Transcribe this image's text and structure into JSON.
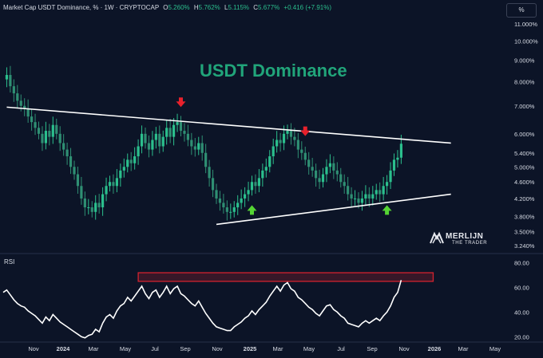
{
  "header": {
    "symbol": "Market Cap USDT Dominance, % · 1W · CRYPTOCAP",
    "o_label": "O",
    "o_value": "5.260%",
    "h_label": "H",
    "h_value": "5.762%",
    "l_label": "L",
    "l_value": "5.115%",
    "c_label": "C",
    "c_value": "5.677%",
    "change": "+0.416 (+7.91%)"
  },
  "scale_button": "%",
  "title": "USDT Dominance",
  "rsi_label": "RSI",
  "watermark": {
    "line1": "MERLIJN",
    "line2": "THE TRADER"
  },
  "colors": {
    "bg": "#0c1427",
    "up": "#2bbf8d",
    "down": "#2f8f73",
    "title": "#21a57a",
    "arrow_down": "#e8212c",
    "arrow_up": "#55d434",
    "box": "#d3232f"
  },
  "chart_data": {
    "type": "candlestick",
    "price_ticks": [
      "11.000%",
      "10.000%",
      "9.000%",
      "8.000%",
      "7.000%",
      "6.000%",
      "5.400%",
      "5.000%",
      "4.600%",
      "4.200%",
      "3.800%",
      "3.500%",
      "3.240%"
    ],
    "price_tick_values": [
      11,
      10,
      9,
      8,
      7,
      6,
      5.4,
      5,
      4.6,
      4.2,
      3.8,
      3.5,
      3.24
    ],
    "rsi_ticks": [
      "80.00",
      "60.00",
      "40.00",
      "20.00"
    ],
    "rsi_tick_values": [
      80,
      60,
      40,
      20
    ],
    "time_ticks": [
      "Nov",
      "2024",
      "Mar",
      "May",
      "Jul",
      "Sep",
      "Nov",
      "2025",
      "Mar",
      "May",
      "Jul",
      "Sep",
      "Nov",
      "2026",
      "Mar",
      "May"
    ],
    "time_ticks_bold": [
      false,
      true,
      false,
      false,
      false,
      false,
      false,
      true,
      false,
      false,
      false,
      false,
      false,
      true,
      false,
      false
    ],
    "scale": "log",
    "closes": [
      8.1,
      8.3,
      7.8,
      7.5,
      7.2,
      7.0,
      6.9,
      6.6,
      6.4,
      6.2,
      6.0,
      5.7,
      6.1,
      5.9,
      6.3,
      6.0,
      5.7,
      5.5,
      5.3,
      5.0,
      4.8,
      4.5,
      4.2,
      4.0,
      4.0,
      3.9,
      4.1,
      4.0,
      4.3,
      4.5,
      4.6,
      4.5,
      4.7,
      4.9,
      5.0,
      5.2,
      5.1,
      5.3,
      5.6,
      6.0,
      5.7,
      5.5,
      5.8,
      6.0,
      5.6,
      5.9,
      6.2,
      5.9,
      6.3,
      6.4,
      6.1,
      6.0,
      5.8,
      5.6,
      5.5,
      5.7,
      5.4,
      5.0,
      4.7,
      4.4,
      4.2,
      4.1,
      4.0,
      3.9,
      3.9,
      4.0,
      4.1,
      4.2,
      4.3,
      4.4,
      4.6,
      4.5,
      4.7,
      4.9,
      5.0,
      5.3,
      5.6,
      5.8,
      5.7,
      6.0,
      6.1,
      5.9,
      5.8,
      5.5,
      5.4,
      5.2,
      5.0,
      4.9,
      4.7,
      4.6,
      4.8,
      5.0,
      5.1,
      4.9,
      4.8,
      4.6,
      4.5,
      4.3,
      4.2,
      4.2,
      4.1,
      4.2,
      4.3,
      4.2,
      4.3,
      4.4,
      4.3,
      4.5,
      4.6,
      4.9,
      5.2,
      5.26,
      5.68
    ],
    "rsi": [
      56,
      58,
      54,
      50,
      47,
      45,
      44,
      41,
      39,
      37,
      34,
      31,
      36,
      33,
      38,
      35,
      32,
      30,
      28,
      26,
      24,
      22,
      20,
      19,
      21,
      22,
      26,
      24,
      31,
      36,
      38,
      35,
      41,
      45,
      47,
      52,
      49,
      53,
      57,
      61,
      55,
      51,
      56,
      58,
      52,
      56,
      61,
      55,
      59,
      61,
      55,
      53,
      50,
      47,
      45,
      49,
      44,
      39,
      35,
      31,
      28,
      27,
      26,
      25,
      25,
      28,
      30,
      32,
      35,
      37,
      41,
      38,
      42,
      45,
      48,
      53,
      57,
      61,
      57,
      62,
      64,
      59,
      57,
      52,
      50,
      47,
      44,
      42,
      39,
      37,
      41,
      45,
      46,
      42,
      40,
      37,
      35,
      31,
      30,
      29,
      28,
      31,
      33,
      31,
      33,
      35,
      33,
      37,
      40,
      45,
      52,
      56,
      66
    ],
    "trendlines": [
      {
        "name": "upper",
        "from": [
          1,
          6.95
        ],
        "to": [
          126,
          5.7
        ]
      },
      {
        "name": "lower",
        "from": [
          60,
          3.64
        ],
        "to": [
          126,
          4.3
        ]
      }
    ],
    "markers": [
      {
        "type": "down",
        "index": 50
      },
      {
        "type": "down",
        "index": 85
      },
      {
        "type": "down",
        "index": 119
      },
      {
        "type": "up",
        "index": 70
      },
      {
        "type": "up",
        "index": 108
      }
    ],
    "rsi_box": [
      65,
      72
    ]
  }
}
